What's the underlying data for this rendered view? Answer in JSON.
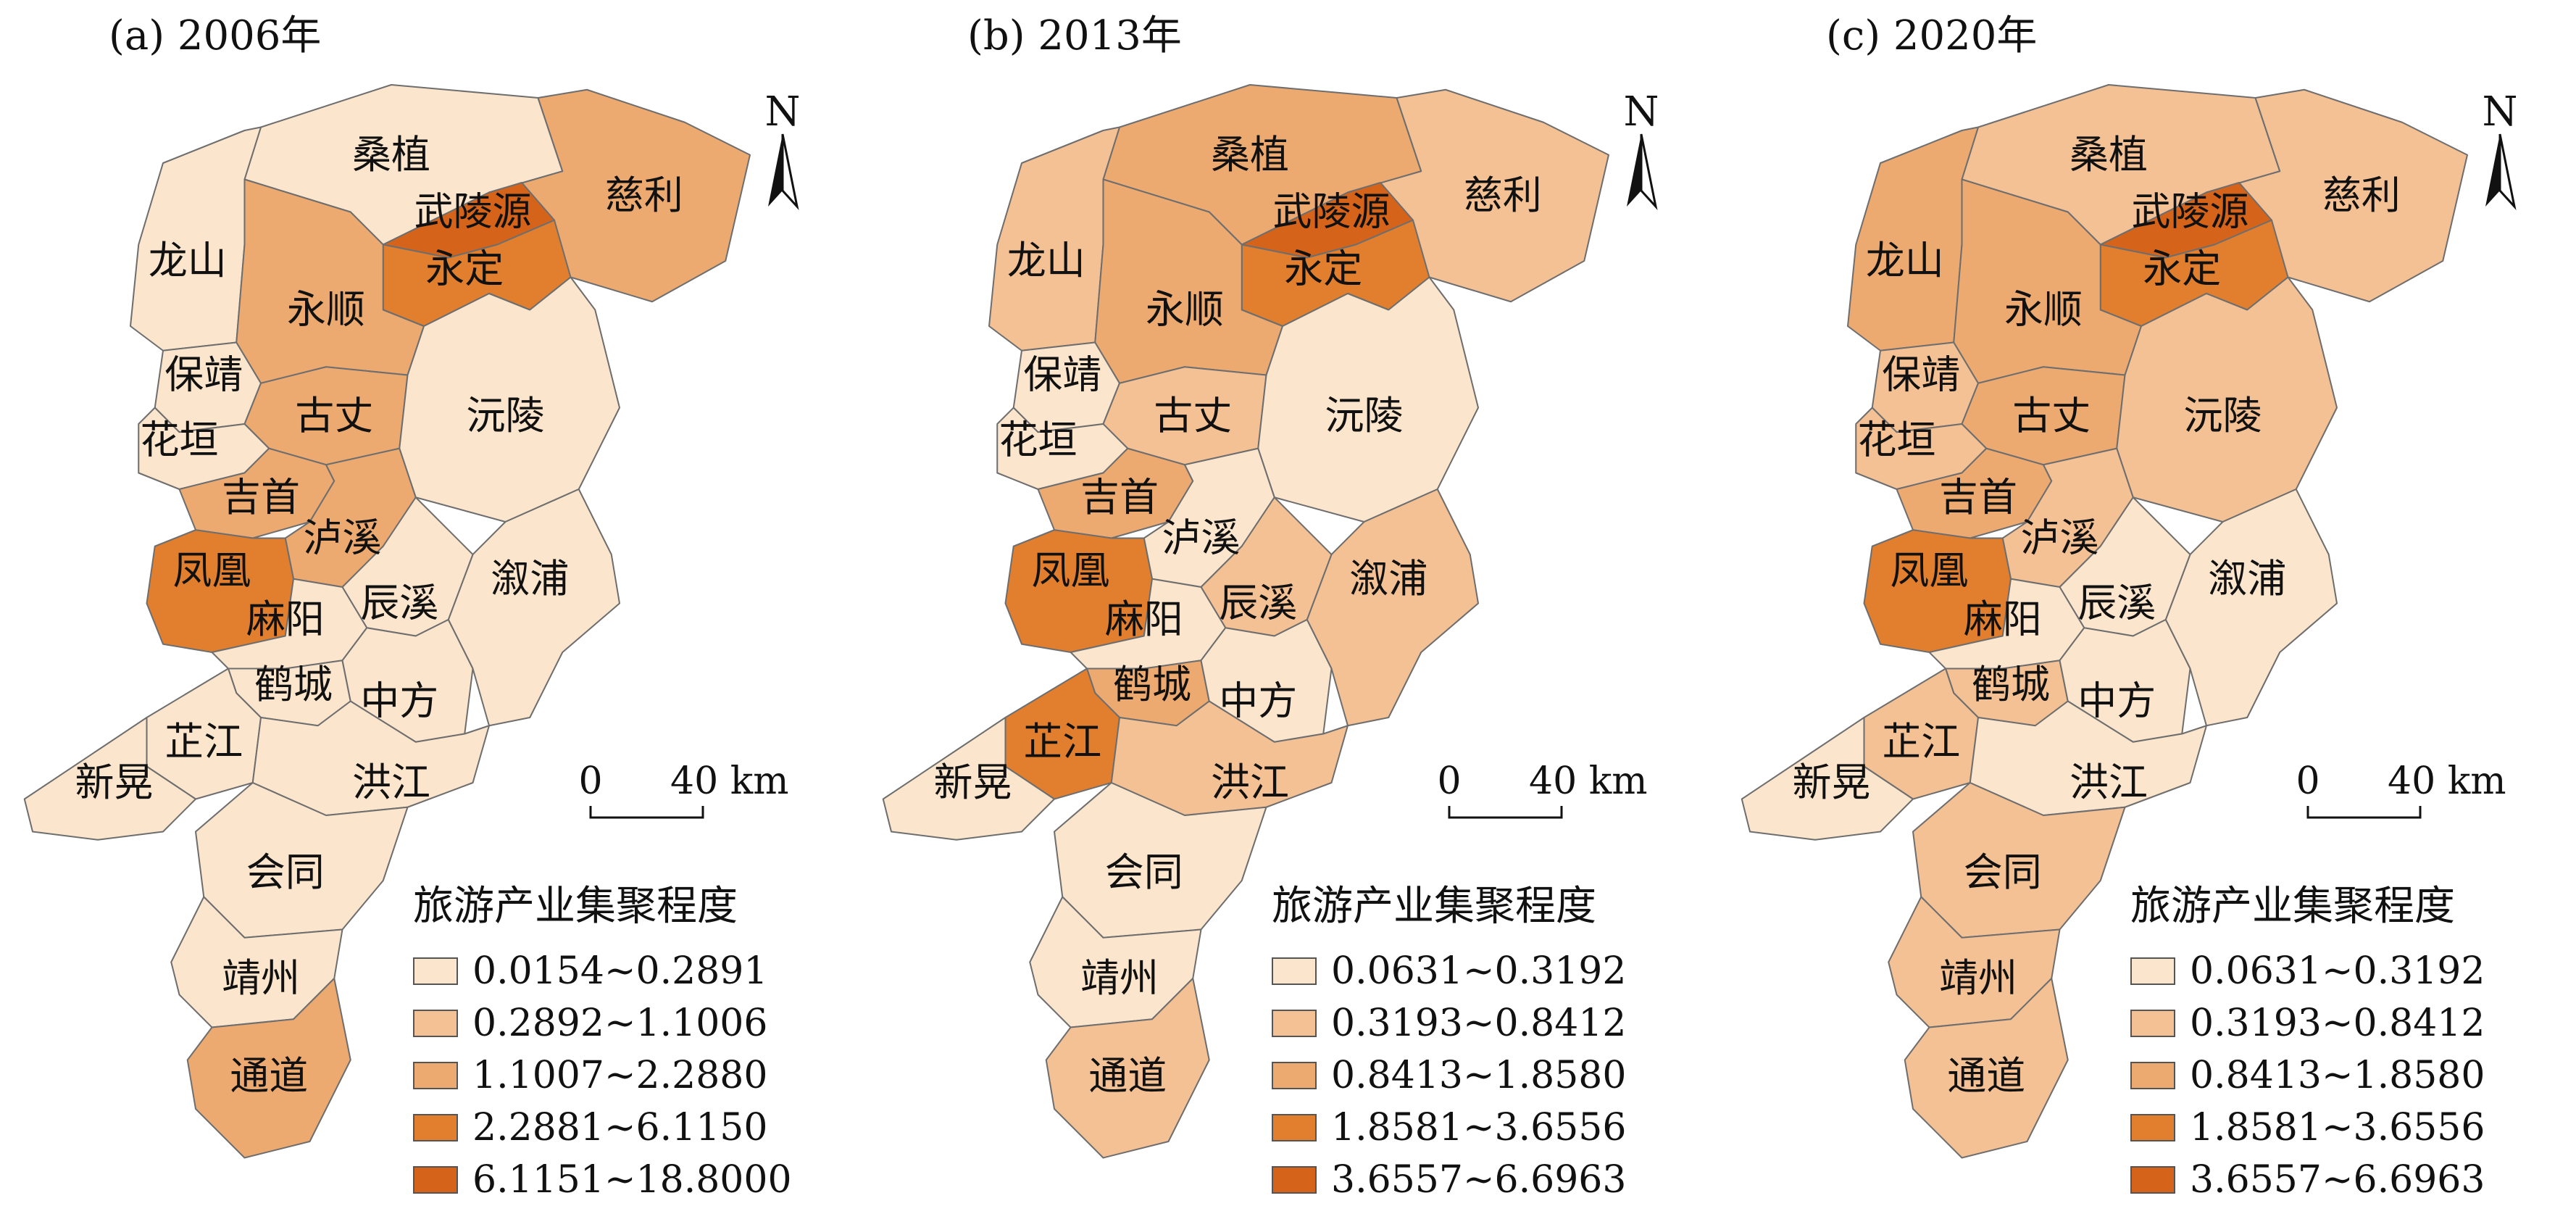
{
  "legend_title": "旅游产业集聚程度",
  "scale": {
    "zero": "0",
    "distance": "40 km"
  },
  "north_label": "N",
  "panels": [
    {
      "title": "(a) 2006年",
      "legend": [
        {
          "label": "0.0154~0.2891",
          "color": "#fbe6cd"
        },
        {
          "label": "0.2892~1.1006",
          "color": "#f4c195"
        },
        {
          "label": "1.1007~2.2880",
          "color": "#ecaa71"
        },
        {
          "label": "2.2881~6.1150",
          "color": "#e17f2e"
        },
        {
          "label": "6.1151~18.8000",
          "color": "#d5641a"
        }
      ],
      "regions": {
        "sangzhi": {
          "name": "桑植",
          "class": 0
        },
        "cili": {
          "name": "慈利",
          "class": 2
        },
        "wulingyuan": {
          "name": "武陵源",
          "class": 4
        },
        "yongding": {
          "name": "永定",
          "class": 3
        },
        "longshan": {
          "name": "龙山",
          "class": 0
        },
        "yongshun": {
          "name": "永顺",
          "class": 2
        },
        "baojing": {
          "name": "保靖",
          "class": 0
        },
        "guzhang": {
          "name": "古丈",
          "class": 2
        },
        "yuanling": {
          "name": "沅陵",
          "class": 0
        },
        "huayuan": {
          "name": "花垣",
          "class": 0
        },
        "jishou": {
          "name": "吉首",
          "class": 2
        },
        "luxi": {
          "name": "泸溪",
          "class": 2
        },
        "fenghuang": {
          "name": "凤凰",
          "class": 3
        },
        "xupu": {
          "name": "溆浦",
          "class": 0
        },
        "chenxi": {
          "name": "辰溪",
          "class": 0
        },
        "mayang": {
          "name": "麻阳",
          "class": 0
        },
        "hecheng": {
          "name": "鹤城",
          "class": 0
        },
        "zhongfang": {
          "name": "中方",
          "class": 0
        },
        "zhijiang": {
          "name": "芷江",
          "class": 0
        },
        "xinhuang": {
          "name": "新晃",
          "class": 0
        },
        "hongjiang": {
          "name": "洪江",
          "class": 0
        },
        "huitong": {
          "name": "会同",
          "class": 0
        },
        "jingzhou": {
          "name": "靖州",
          "class": 0
        },
        "tongdao": {
          "name": "通道",
          "class": 2
        }
      }
    },
    {
      "title": "(b) 2013年",
      "legend": [
        {
          "label": "0.0631~0.3192",
          "color": "#fbe6cd"
        },
        {
          "label": "0.3193~0.8412",
          "color": "#f4c195"
        },
        {
          "label": "0.8413~1.8580",
          "color": "#ecaa71"
        },
        {
          "label": "1.8581~3.6556",
          "color": "#e17f2e"
        },
        {
          "label": "3.6557~6.6963",
          "color": "#d5641a"
        }
      ],
      "regions": {
        "sangzhi": {
          "name": "桑植",
          "class": 2
        },
        "cili": {
          "name": "慈利",
          "class": 1
        },
        "wulingyuan": {
          "name": "武陵源",
          "class": 4
        },
        "yongding": {
          "name": "永定",
          "class": 3
        },
        "longshan": {
          "name": "龙山",
          "class": 1
        },
        "yongshun": {
          "name": "永顺",
          "class": 2
        },
        "baojing": {
          "name": "保靖",
          "class": 0
        },
        "guzhang": {
          "name": "古丈",
          "class": 1
        },
        "yuanling": {
          "name": "沅陵",
          "class": 0
        },
        "huayuan": {
          "name": "花垣",
          "class": 0
        },
        "jishou": {
          "name": "吉首",
          "class": 2
        },
        "luxi": {
          "name": "泸溪",
          "class": 0
        },
        "fenghuang": {
          "name": "凤凰",
          "class": 3
        },
        "xupu": {
          "name": "溆浦",
          "class": 1
        },
        "chenxi": {
          "name": "辰溪",
          "class": 1
        },
        "mayang": {
          "name": "麻阳",
          "class": 0
        },
        "hecheng": {
          "name": "鹤城",
          "class": 2
        },
        "zhongfang": {
          "name": "中方",
          "class": 0
        },
        "zhijiang": {
          "name": "芷江",
          "class": 3
        },
        "xinhuang": {
          "name": "新晃",
          "class": 0
        },
        "hongjiang": {
          "name": "洪江",
          "class": 1
        },
        "huitong": {
          "name": "会同",
          "class": 0
        },
        "jingzhou": {
          "name": "靖州",
          "class": 0
        },
        "tongdao": {
          "name": "通道",
          "class": 1
        }
      }
    },
    {
      "title": "(c) 2020年",
      "legend": [
        {
          "label": "0.0631~0.3192",
          "color": "#fbe6cd"
        },
        {
          "label": "0.3193~0.8412",
          "color": "#f4c195"
        },
        {
          "label": "0.8413~1.8580",
          "color": "#ecaa71"
        },
        {
          "label": "1.8581~3.6556",
          "color": "#e17f2e"
        },
        {
          "label": "3.6557~6.6963",
          "color": "#d5641a"
        }
      ],
      "regions": {
        "sangzhi": {
          "name": "桑植",
          "class": 1
        },
        "cili": {
          "name": "慈利",
          "class": 1
        },
        "wulingyuan": {
          "name": "武陵源",
          "class": 4
        },
        "yongding": {
          "name": "永定",
          "class": 3
        },
        "longshan": {
          "name": "龙山",
          "class": 2
        },
        "yongshun": {
          "name": "永顺",
          "class": 2
        },
        "baojing": {
          "name": "保靖",
          "class": 1
        },
        "guzhang": {
          "name": "古丈",
          "class": 2
        },
        "yuanling": {
          "name": "沅陵",
          "class": 1
        },
        "huayuan": {
          "name": "花垣",
          "class": 1
        },
        "jishou": {
          "name": "吉首",
          "class": 2
        },
        "luxi": {
          "name": "泸溪",
          "class": 1
        },
        "fenghuang": {
          "name": "凤凰",
          "class": 3
        },
        "xupu": {
          "name": "溆浦",
          "class": 0
        },
        "chenxi": {
          "name": "辰溪",
          "class": 0
        },
        "mayang": {
          "name": "麻阳",
          "class": 0
        },
        "hecheng": {
          "name": "鹤城",
          "class": 1
        },
        "zhongfang": {
          "name": "中方",
          "class": 0
        },
        "zhijiang": {
          "name": "芷江",
          "class": 1
        },
        "xinhuang": {
          "name": "新晃",
          "class": 0
        },
        "hongjiang": {
          "name": "洪江",
          "class": 0
        },
        "huitong": {
          "name": "会同",
          "class": 1
        },
        "jingzhou": {
          "name": "靖州",
          "class": 1
        },
        "tongdao": {
          "name": "通道",
          "class": 1
        }
      }
    }
  ]
}
